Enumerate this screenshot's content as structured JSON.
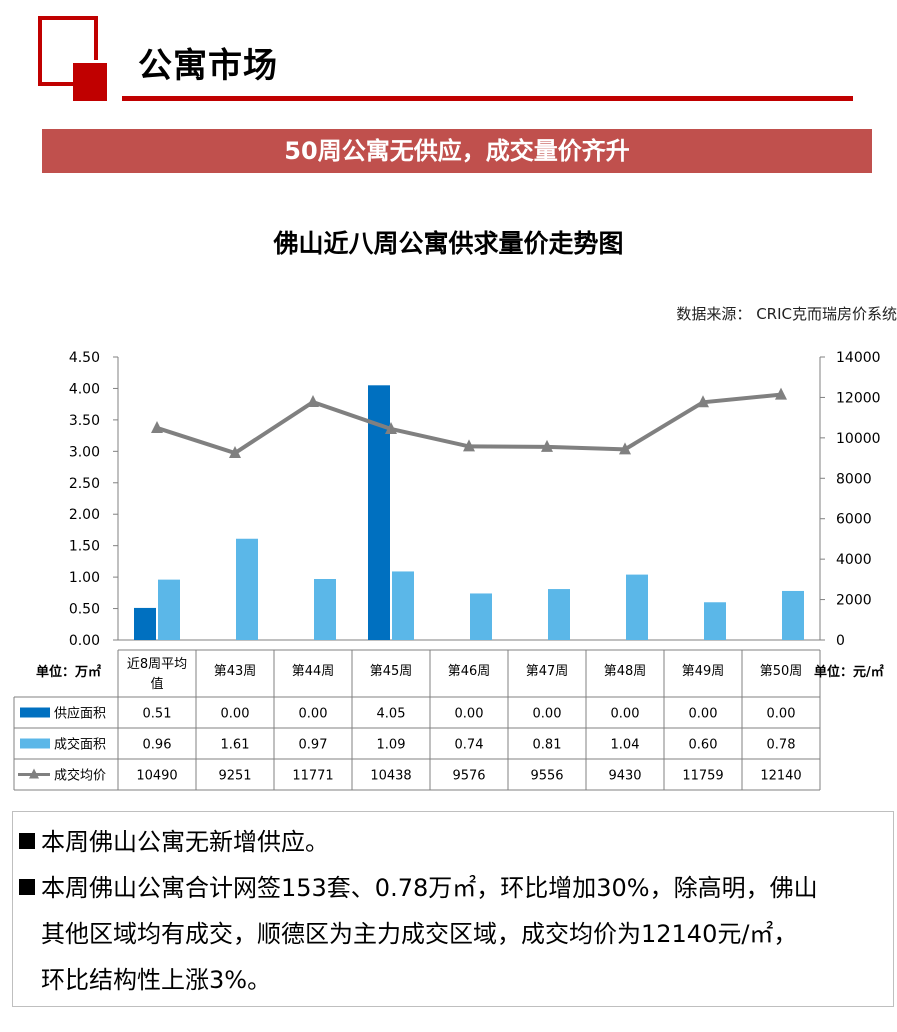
{
  "header": {
    "section_title": "公寓市场",
    "banner": "50周公寓无供应，成交量价齐升"
  },
  "chart_data": {
    "type": "bar",
    "title": "佛山近八周公寓供求量价走势图",
    "source": "数据来源：  CRIC克而瑞房价系统",
    "left_unit": "单位：万㎡",
    "right_unit": "单位：元/㎡",
    "categories": [
      "近8周平均值",
      "第43周",
      "第44周",
      "第45周",
      "第46周",
      "第47周",
      "第48周",
      "第49周",
      "第50周"
    ],
    "category_lines": [
      [
        "近8周平均",
        "值"
      ],
      [
        "第43周"
      ],
      [
        "第44周"
      ],
      [
        "第45周"
      ],
      [
        "第46周"
      ],
      [
        "第47周"
      ],
      [
        "第48周"
      ],
      [
        "第49周"
      ],
      [
        "第50周"
      ]
    ],
    "ylim": [
      0,
      4.5
    ],
    "y_ticks": [
      "0.00",
      "0.50",
      "1.00",
      "1.50",
      "2.00",
      "2.50",
      "3.00",
      "3.50",
      "4.00",
      "4.50"
    ],
    "y2lim": [
      0,
      14000
    ],
    "y2_ticks": [
      "0",
      "2000",
      "4000",
      "6000",
      "8000",
      "10000",
      "12000",
      "14000"
    ],
    "series": [
      {
        "name": "供应面积",
        "type": "bar",
        "axis": "left",
        "color": "#0070c0",
        "values": [
          0.51,
          0.0,
          0.0,
          4.05,
          0.0,
          0.0,
          0.0,
          0.0,
          0.0
        ],
        "labels": [
          "0.51",
          "0.00",
          "0.00",
          "4.05",
          "0.00",
          "0.00",
          "0.00",
          "0.00",
          "0.00"
        ]
      },
      {
        "name": "成交面积",
        "type": "bar",
        "axis": "left",
        "color": "#5bb7e8",
        "values": [
          0.96,
          1.61,
          0.97,
          1.09,
          0.74,
          0.81,
          1.04,
          0.6,
          0.78
        ],
        "labels": [
          "0.96",
          "1.61",
          "0.97",
          "1.09",
          "0.74",
          "0.81",
          "1.04",
          "0.60",
          "0.78"
        ]
      },
      {
        "name": "成交均价",
        "type": "line",
        "axis": "right",
        "color": "#808080",
        "values": [
          10490,
          9251,
          11771,
          10438,
          9576,
          9556,
          9430,
          11759,
          12140
        ],
        "labels": [
          "10490",
          "9251",
          "11771",
          "10438",
          "9576",
          "9556",
          "9430",
          "11759",
          "12140"
        ]
      }
    ],
    "grid": false,
    "legend": "data-table"
  },
  "notes": [
    "本周佛山公寓无新增供应。",
    "本周佛山公寓合计网签153套、0.78万㎡，环比增加30%，除高明，佛山",
    "其他区域均有成交，顺德区为主力成交区域，成交均价为12140元/㎡，",
    "环比结构性上涨3%。"
  ]
}
